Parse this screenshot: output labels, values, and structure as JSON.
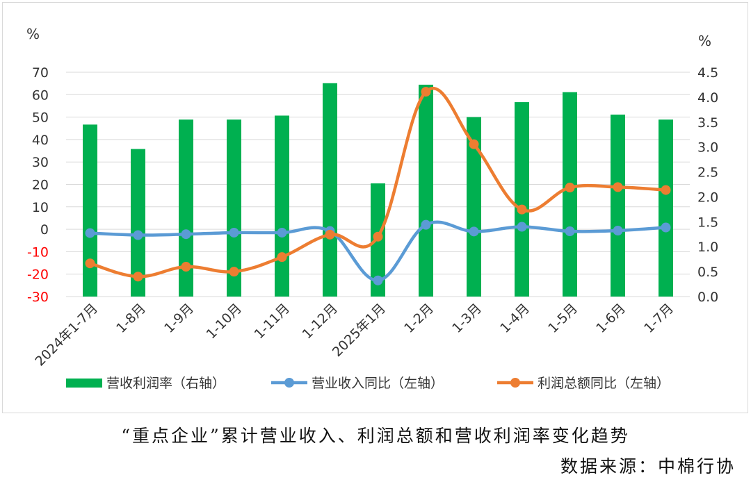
{
  "chart_data": {
    "type": "bar+line",
    "categories": [
      "2024年1-7月",
      "1-8月",
      "1-9月",
      "1-10月",
      "1-11月",
      "1-12月",
      "2025年1月",
      "1-2月",
      "1-3月",
      "1-4月",
      "1-5月",
      "1-6月",
      "1-7月"
    ],
    "left_axis": {
      "unit": "%",
      "min": -30,
      "max": 70,
      "ticks": [
        70,
        60,
        50,
        40,
        30,
        20,
        10,
        0,
        -10,
        -20,
        -30
      ]
    },
    "right_axis": {
      "unit": "%",
      "min": 0.0,
      "max": 4.5,
      "ticks": [
        "4.5",
        "4.0",
        "3.5",
        "3.0",
        "2.5",
        "2.0",
        "1.5",
        "1.0",
        "0.5",
        "0.0"
      ]
    },
    "series": [
      {
        "name": "营收利润率（右轴）",
        "type": "bar",
        "axis": "right",
        "color": "#00b050",
        "values": [
          3.45,
          2.96,
          3.55,
          3.55,
          3.63,
          4.28,
          2.27,
          4.25,
          3.6,
          3.9,
          4.1,
          3.65,
          3.55
        ]
      },
      {
        "name": "营业收入同比（左轴）",
        "type": "line",
        "axis": "left",
        "color": "#5b9bd5",
        "values": [
          -1.7,
          -2.6,
          -2.2,
          -1.5,
          -1.5,
          -0.8,
          -22.8,
          2.0,
          -1.0,
          1.1,
          -0.9,
          -0.6,
          0.8
        ]
      },
      {
        "name": "利润总额同比（左轴）",
        "type": "line",
        "axis": "left",
        "color": "#ed7d31",
        "values": [
          -15.2,
          -21.1,
          -16.7,
          -18.9,
          -12.4,
          -2.4,
          -3.3,
          61.3,
          37.9,
          8.8,
          18.6,
          18.8,
          17.5
        ]
      }
    ],
    "negative_tick_color": "#ff0000",
    "legend_position": "bottom",
    "grid": "horizontal"
  },
  "caption": "“重点企业”累计营业收入、利润总额和营收利润率变化趋势",
  "source": "数据来源：中棉行协"
}
